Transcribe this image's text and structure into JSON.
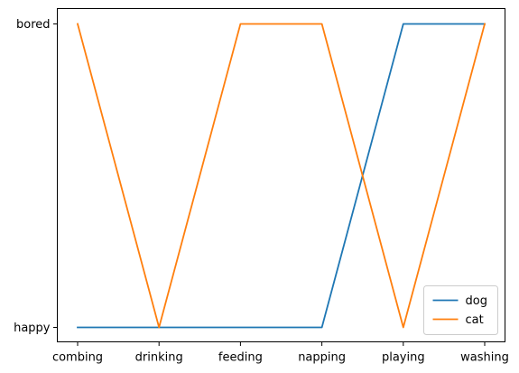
{
  "chart_data": {
    "type": "line",
    "categories": [
      "combing",
      "drinking",
      "feeding",
      "napping",
      "playing",
      "washing"
    ],
    "y_categories": [
      "happy",
      "bored"
    ],
    "series": [
      {
        "name": "dog",
        "color": "#1f77b4",
        "values": [
          "happy",
          "happy",
          "happy",
          "happy",
          "bored",
          "bored"
        ]
      },
      {
        "name": "cat",
        "color": "#ff7f0e",
        "values": [
          "bored",
          "happy",
          "bored",
          "bored",
          "happy",
          "bored"
        ]
      }
    ],
    "title": "",
    "xlabel": "",
    "ylabel": "",
    "grid": false,
    "legend_position": "lower-right"
  }
}
